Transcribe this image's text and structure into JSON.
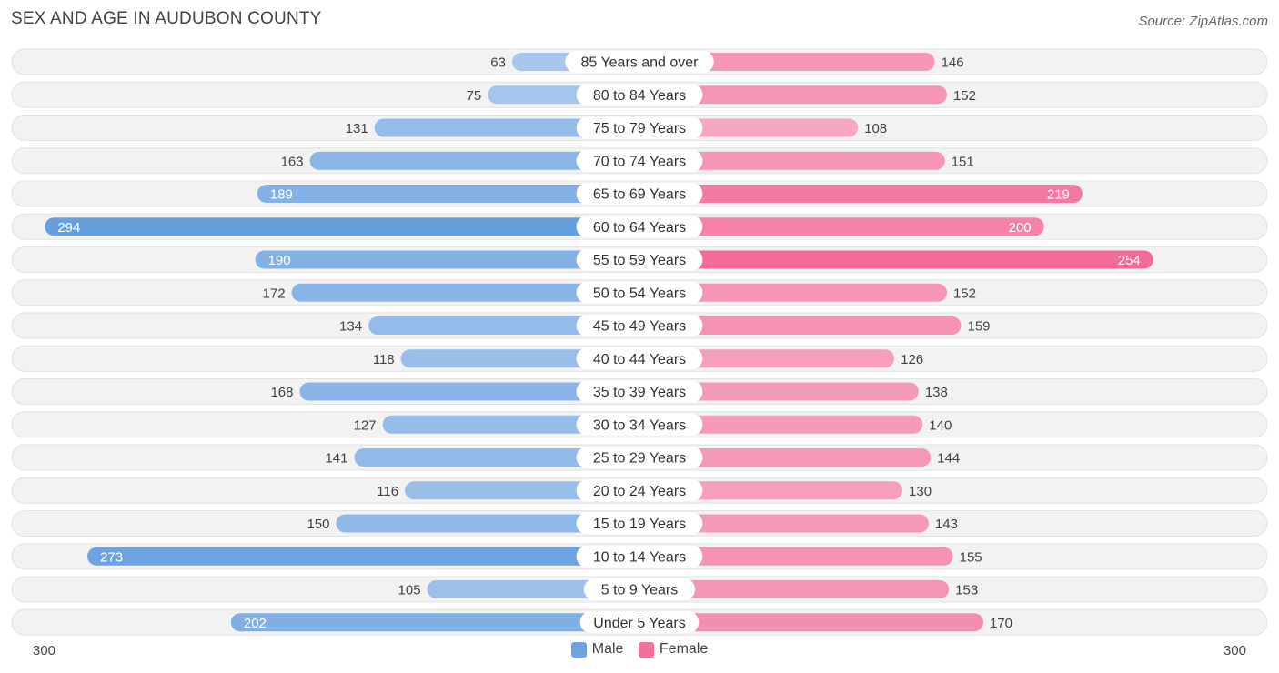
{
  "title": "SEX AND AGE IN AUDUBON COUNTY",
  "source": "Source: ZipAtlas.com",
  "colors": {
    "male": "#6fa3e0",
    "female": "#f0729b",
    "row_bg": "#eeeeee"
  },
  "legend": {
    "male": "Male",
    "female": "Female"
  },
  "axis": {
    "left": "300",
    "right": "300"
  },
  "chart_data": {
    "type": "bar",
    "orientation": "horizontal-diverging",
    "title": "SEX AND AGE IN AUDUBON COUNTY",
    "xlim": [
      0,
      300
    ],
    "legend_position": "bottom-center",
    "categories": [
      "85 Years and over",
      "80 to 84 Years",
      "75 to 79 Years",
      "70 to 74 Years",
      "65 to 69 Years",
      "60 to 64 Years",
      "55 to 59 Years",
      "50 to 54 Years",
      "45 to 49 Years",
      "40 to 44 Years",
      "35 to 39 Years",
      "30 to 34 Years",
      "25 to 29 Years",
      "20 to 24 Years",
      "15 to 19 Years",
      "10 to 14 Years",
      "5 to 9 Years",
      "Under 5 Years"
    ],
    "series": [
      {
        "name": "Male",
        "values": [
          63,
          75,
          131,
          163,
          189,
          294,
          190,
          172,
          134,
          118,
          168,
          127,
          141,
          116,
          150,
          273,
          105,
          202
        ]
      },
      {
        "name": "Female",
        "values": [
          146,
          152,
          108,
          151,
          219,
          200,
          254,
          152,
          159,
          126,
          138,
          140,
          144,
          130,
          143,
          155,
          153,
          170
        ]
      }
    ]
  }
}
